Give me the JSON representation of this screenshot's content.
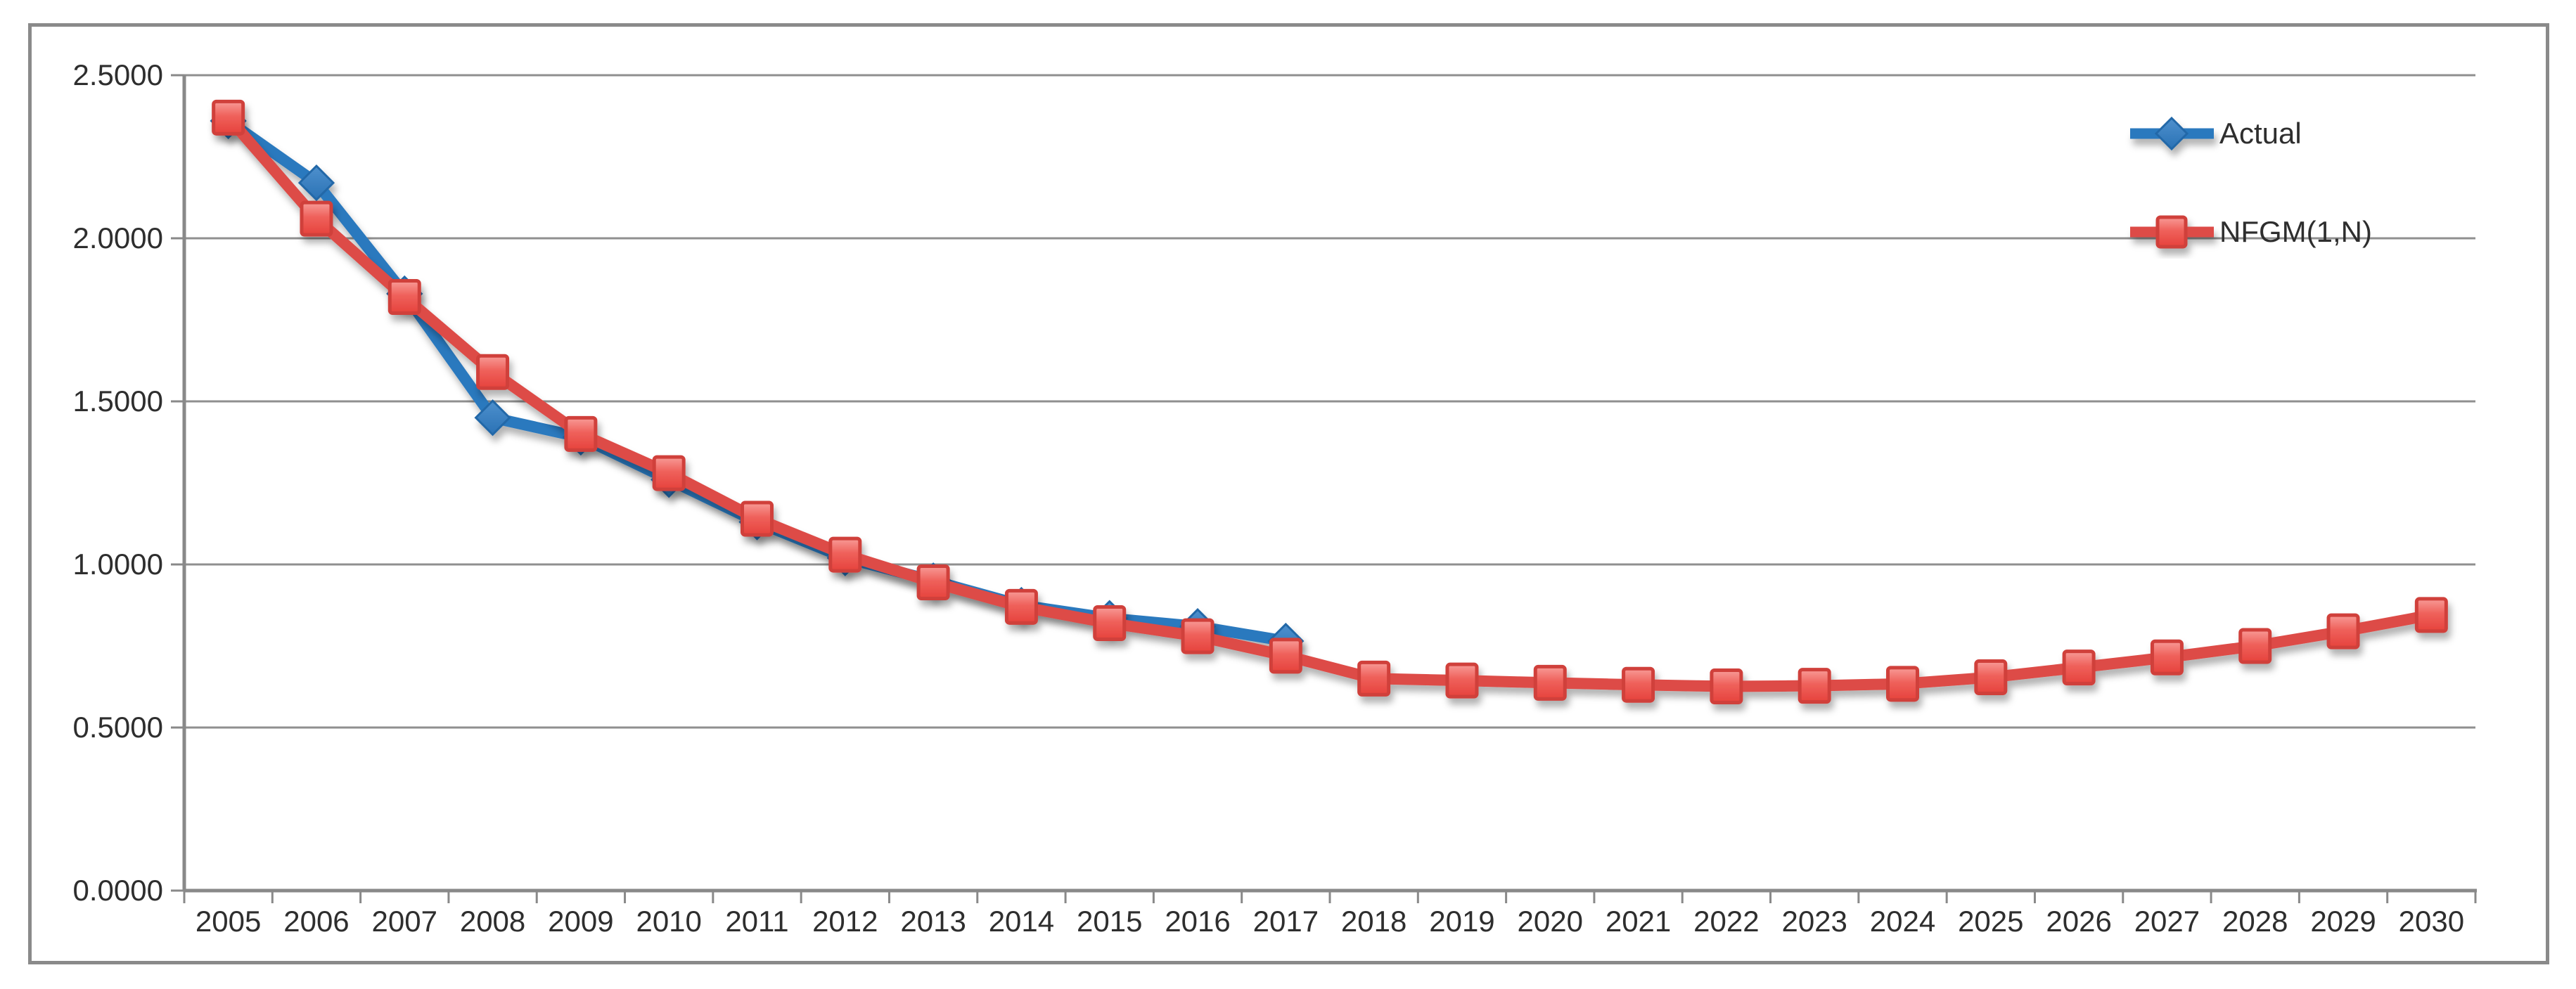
{
  "figure": {
    "background": "#ffffff",
    "frame_border_color": "#8a8a8a",
    "gridline_color": "#8f8f8f",
    "axis_color": "#898989",
    "text_color": "#2e2e2e"
  },
  "legend": {
    "position": "top-right-inside",
    "items": [
      {
        "label": "Actual",
        "color": "#2c79be",
        "marker": "diamond"
      },
      {
        "label": "NFGM(1,N)",
        "color": "#dd4b46",
        "marker": "square"
      }
    ]
  },
  "chart_data": {
    "type": "line",
    "title": "",
    "xlabel": "",
    "ylabel": "",
    "ylim": [
      0.0,
      2.5
    ],
    "y_tick_step": 0.5,
    "grid": "horizontal",
    "legend_position": "top-right-inside",
    "categories": [
      2005,
      2006,
      2007,
      2008,
      2009,
      2010,
      2011,
      2012,
      2013,
      2014,
      2015,
      2016,
      2017,
      2018,
      2019,
      2020,
      2021,
      2022,
      2023,
      2024,
      2025,
      2026,
      2027,
      2028,
      2029,
      2030
    ],
    "x_tick_labels": [
      "2005",
      "2006",
      "2007",
      "2008",
      "2009",
      "2010",
      "2011",
      "2012",
      "2013",
      "2014",
      "2015",
      "2016",
      "2017",
      "2018",
      "2019",
      "2020",
      "2021",
      "2022",
      "2023",
      "2024",
      "2025",
      "2026",
      "2027",
      "2028",
      "2029",
      "2030"
    ],
    "y_tick_labels": [
      "0.0000",
      "0.5000",
      "1.0000",
      "1.5000",
      "2.0000",
      "2.5000"
    ],
    "series": [
      {
        "name": "Actual",
        "color": "#2c79be",
        "marker": "diamond",
        "values": [
          2.36,
          2.17,
          1.83,
          1.45,
          1.39,
          1.26,
          1.13,
          1.02,
          0.95,
          0.875,
          0.835,
          0.81,
          0.765
        ]
      },
      {
        "name": "NFGM(1,N)",
        "color": "#dd4b46",
        "marker": "square",
        "values": [
          2.37,
          2.06,
          1.82,
          1.59,
          1.4,
          1.28,
          1.14,
          1.03,
          0.945,
          0.87,
          0.82,
          0.78,
          0.72,
          0.65,
          0.644,
          0.637,
          0.631,
          0.626,
          0.628,
          0.634,
          0.654,
          0.684,
          0.715,
          0.75,
          0.795,
          0.845
        ]
      }
    ]
  }
}
